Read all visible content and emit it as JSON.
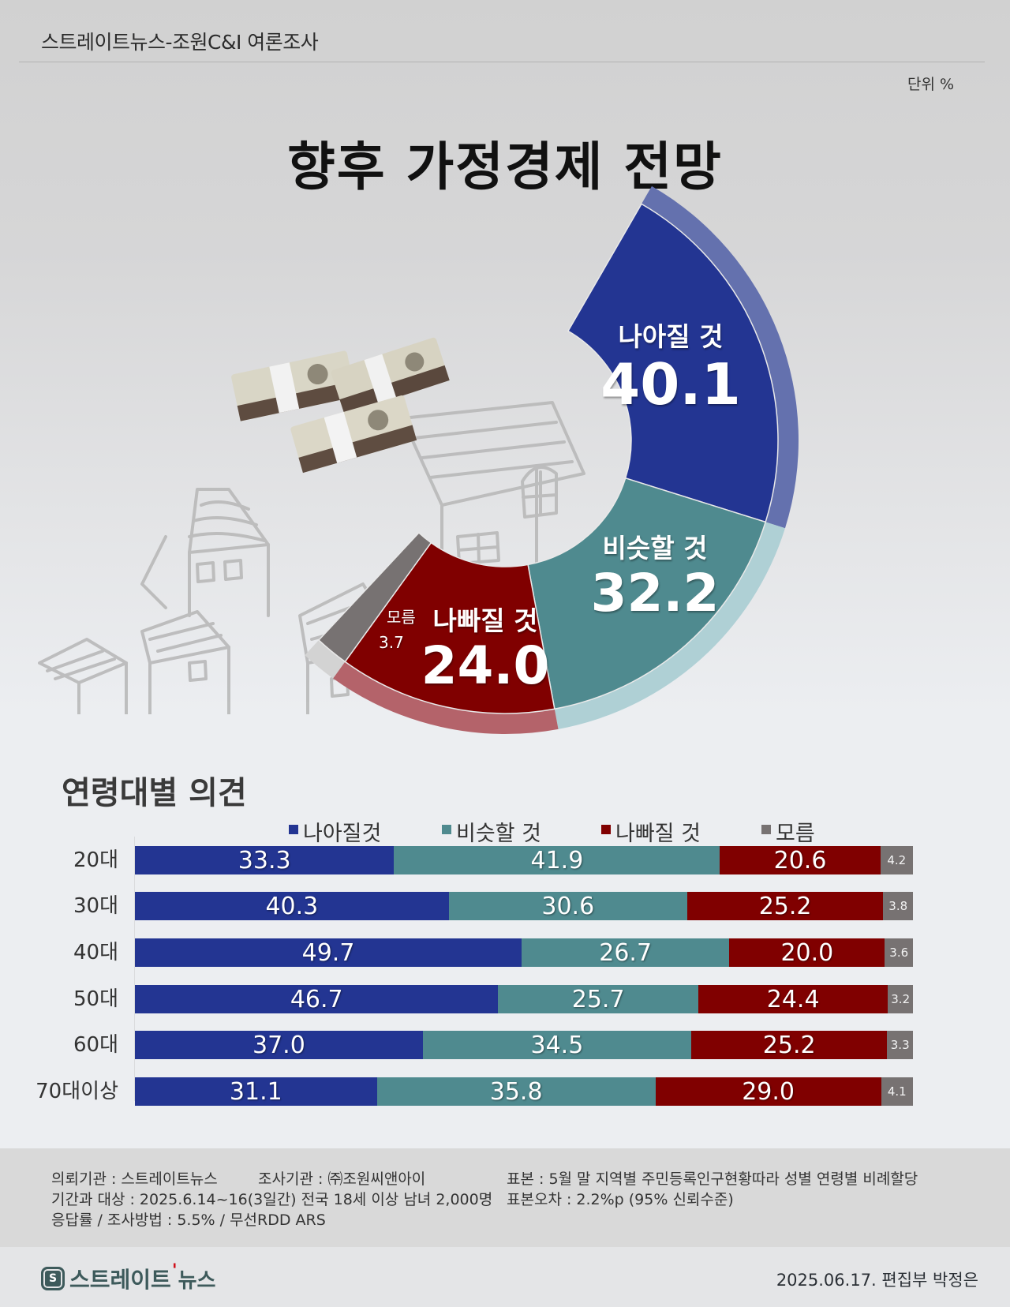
{
  "header": {
    "title": "스트레이트뉴스-조원C&I 여론조사",
    "unit": "단위 %"
  },
  "main_title": "향후 가정경제 전망",
  "donut": {
    "segments": [
      {
        "name": "나아질 것",
        "value": "40.1",
        "color": "#233592",
        "band": "#6471ae"
      },
      {
        "name": "비슷할 것",
        "value": "32.2",
        "color": "#4f8a8f",
        "band": "#afd0d5"
      },
      {
        "name": "나빠질 것",
        "value": "24.0",
        "color": "#800000",
        "band": "#b4636a"
      },
      {
        "name": "모름",
        "value": "3.7",
        "color": "#777272",
        "band": "#d3d3d3"
      }
    ]
  },
  "age_section": {
    "title": "연령대별 의견",
    "legend": [
      {
        "label": "나아질것",
        "color": "#233592"
      },
      {
        "label": "비슷할 것",
        "color": "#4f8a8f"
      },
      {
        "label": "나빠질 것",
        "color": "#800000"
      },
      {
        "label": "모름",
        "color": "#777272"
      }
    ],
    "rows": [
      {
        "label": "20대",
        "values": [
          "33.3",
          "41.9",
          "20.6",
          "4.2"
        ]
      },
      {
        "label": "30대",
        "values": [
          "40.3",
          "30.6",
          "25.2",
          "3.8"
        ]
      },
      {
        "label": "40대",
        "values": [
          "49.7",
          "26.7",
          "20.0",
          "3.6"
        ]
      },
      {
        "label": "50대",
        "values": [
          "46.7",
          "25.7",
          "24.4",
          "3.2"
        ]
      },
      {
        "label": "60대",
        "values": [
          "37.0",
          "34.5",
          "25.2",
          "3.3"
        ]
      },
      {
        "label": "70대이상",
        "values": [
          "31.1",
          "35.8",
          "29.0",
          "4.1"
        ]
      }
    ]
  },
  "survey_info": {
    "client": "의뢰기관 : 스트레이트뉴스",
    "agency": "조사기관 : ㈜조원씨앤아이",
    "period": "기간과 대상 : 2025.6.14~16(3일간)  전국 18세 이상 남녀 2,000명",
    "response": "응답률 / 조사방법 : 5.5% / 무선RDD ARS",
    "sample": "표본 : 5월 말 지역별 주민등록인구현황따라 성별 연령별 비례할당",
    "error": "표본오차 : 2.2%p (95% 신뢰수준)"
  },
  "footer": {
    "brand_main": "스트레이트",
    "brand_accent": "'",
    "brand_sub": "뉴스",
    "brand_mark": "S",
    "credit": "2025.06.17. 편집부 박정은"
  },
  "chart_data": [
    {
      "type": "pie",
      "title": "향후 가정경제 전망",
      "subtitle": "단위 %",
      "categories": [
        "나아질 것",
        "비슷할 것",
        "나빠질 것",
        "모름"
      ],
      "values": [
        40.1,
        32.2,
        24.0,
        3.7
      ],
      "colors": [
        "#233592",
        "#4f8a8f",
        "#800000",
        "#777272"
      ],
      "style": "partial donut (half-ring) with outer highlight band"
    },
    {
      "type": "bar",
      "orientation": "horizontal stacked 100%",
      "title": "연령대별 의견",
      "categories": [
        "20대",
        "30대",
        "40대",
        "50대",
        "60대",
        "70대이상"
      ],
      "series": [
        {
          "name": "나아질것",
          "values": [
            33.3,
            40.3,
            49.7,
            46.7,
            37.0,
            31.1
          ]
        },
        {
          "name": "비슷할 것",
          "values": [
            41.9,
            30.6,
            26.7,
            25.7,
            34.5,
            35.8
          ]
        },
        {
          "name": "나빠질 것",
          "values": [
            20.6,
            25.2,
            20.0,
            24.4,
            25.2,
            29.0
          ]
        },
        {
          "name": "모름",
          "values": [
            4.2,
            3.8,
            3.6,
            3.2,
            3.3,
            4.1
          ]
        }
      ],
      "legend_position": "top",
      "grid": false
    }
  ]
}
